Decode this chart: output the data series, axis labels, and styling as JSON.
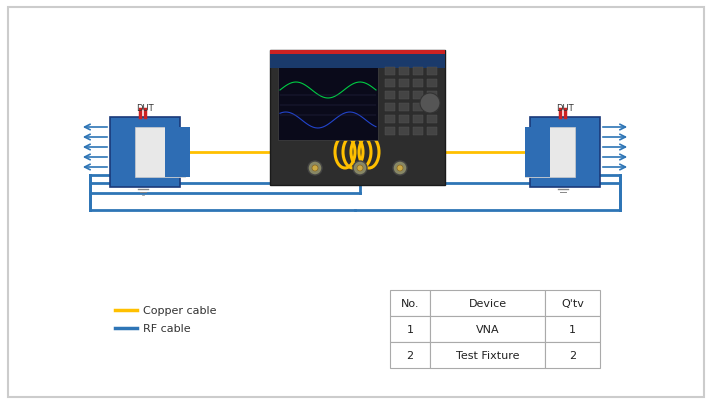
{
  "bg_color": "#ffffff",
  "border_color": "#cccccc",
  "blue_color": "#2e6db4",
  "light_blue_color": "#5b9bd5",
  "yellow_color": "#ffc000",
  "rf_cable_color": "#2e75b6",
  "copper_cable_color": "#ffc000",
  "dark_color": "#1f1f1f",
  "gray_color": "#808080",
  "table_data": {
    "headers": [
      "No.",
      "Device",
      "Q'tv"
    ],
    "rows": [
      [
        "1",
        "VNA",
        "1"
      ],
      [
        "2",
        "Test Fixture",
        "2"
      ]
    ]
  },
  "legend_items": [
    {
      "label": "Copper cable",
      "color": "#ffc000"
    },
    {
      "label": "RF cable",
      "color": "#2e75b6"
    }
  ]
}
